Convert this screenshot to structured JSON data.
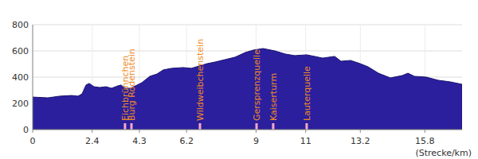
{
  "chart_data": {
    "type": "area",
    "color": "#2b1f9e",
    "grid": true,
    "x_label": "(Strecke/km)",
    "x": [
      0,
      0.61,
      1.09,
      1.57,
      1.83,
      1.99,
      2.15,
      2.28,
      2.47,
      2.7,
      2.95,
      3.18,
      3.43,
      3.56,
      3.72,
      3.92,
      4.14,
      4.4,
      4.72,
      5.01,
      5.26,
      5.59,
      6.07,
      6.39,
      6.71,
      7.03,
      7.35,
      7.74,
      8.15,
      8.57,
      8.89,
      9.28,
      9.76,
      10.18,
      10.56,
      11.04,
      11.36,
      11.68,
      12.17,
      12.42,
      12.81,
      13.19,
      13.51,
      13.93,
      14.41,
      14.89,
      15.12,
      15.38,
      15.86,
      16.34,
      16.82,
      17.3
    ],
    "values": [
      248,
      242,
      255,
      260,
      255,
      272,
      340,
      352,
      327,
      321,
      327,
      315,
      333,
      340,
      315,
      315,
      333,
      358,
      406,
      424,
      455,
      467,
      473,
      467,
      485,
      503,
      515,
      533,
      552,
      588,
      606,
      618,
      600,
      576,
      564,
      570,
      558,
      545,
      558,
      521,
      527,
      503,
      479,
      430,
      394,
      412,
      430,
      406,
      400,
      376,
      364,
      345
    ],
    "xlim": [
      0,
      17.3
    ],
    "ylim": [
      0,
      800
    ],
    "xticks": [
      0,
      2.4,
      4.3,
      6.2,
      9,
      11,
      13.2,
      15.8
    ],
    "yticks": [
      0,
      200,
      400,
      600,
      800
    ],
    "annotations": [
      {
        "x": 3.72,
        "label": "Eichbrünnchen"
      },
      {
        "x": 3.98,
        "label": "Burg Rodenstein"
      },
      {
        "x": 6.74,
        "label": "Wildweibchenstein"
      },
      {
        "x": 9.02,
        "label": "Gersprenzquelle"
      },
      {
        "x": 9.69,
        "label": "Kaiserturm"
      },
      {
        "x": 11.04,
        "label": "Lauterquelle"
      }
    ]
  }
}
